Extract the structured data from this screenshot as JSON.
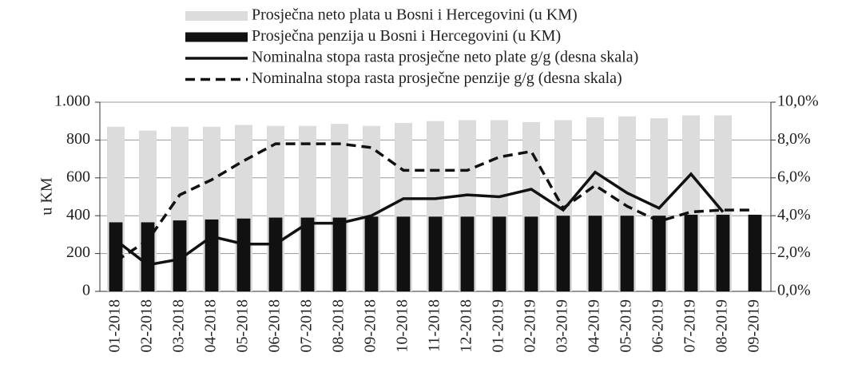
{
  "chart_data": {
    "type": "bar",
    "y_label": "u KM",
    "categories": [
      "01-2018",
      "02-2018",
      "03-2018",
      "04-2018",
      "05-2018",
      "06-2018",
      "07-2018",
      "08-2018",
      "09-2018",
      "10-2018",
      "11-2018",
      "12-2018",
      "01-2019",
      "02-2019",
      "03-2019",
      "04-2019",
      "05-2019",
      "06-2019",
      "07-2019",
      "08-2019",
      "09-2019"
    ],
    "series": [
      {
        "name": "Prosječna neto plata u Bosni i Hercegovini (u KM)",
        "color": "#dcdcdc",
        "style": "bar",
        "axis": "y",
        "values": [
          870,
          850,
          870,
          870,
          880,
          875,
          875,
          885,
          875,
          890,
          900,
          905,
          905,
          895,
          905,
          920,
          925,
          915,
          930,
          930,
          null
        ]
      },
      {
        "name": "Prosječna penzija u Bosni i Hercegovini (u KM)",
        "color": "#111111",
        "style": "bar",
        "axis": "y",
        "values": [
          365,
          365,
          375,
          380,
          385,
          390,
          390,
          390,
          395,
          395,
          395,
          395,
          395,
          395,
          400,
          400,
          400,
          400,
          405,
          405,
          405
        ]
      },
      {
        "name": "Nominalna stopa rasta prosječne neto plate g/g (desna skala)",
        "color": "#111111",
        "style": "line",
        "dash": false,
        "axis": "y2",
        "values": [
          2.7,
          1.4,
          1.7,
          2.9,
          2.5,
          2.5,
          3.6,
          3.6,
          4.0,
          4.9,
          4.9,
          5.1,
          5.0,
          5.4,
          4.3,
          6.3,
          5.2,
          4.4,
          6.2,
          4.2,
          null
        ]
      },
      {
        "name": "Nominalna stopa rasta prosječne penzije g/g (desna skala)",
        "color": "#111111",
        "style": "line",
        "dash": true,
        "axis": "y2",
        "values": [
          1.6,
          2.7,
          5.1,
          5.9,
          6.9,
          7.8,
          7.8,
          7.8,
          7.6,
          6.4,
          6.4,
          6.4,
          7.1,
          7.4,
          4.4,
          5.6,
          4.5,
          3.7,
          4.2,
          4.3,
          4.3
        ]
      }
    ],
    "ylim": [
      0,
      1000
    ],
    "yticks": [
      0,
      200,
      400,
      600,
      800,
      {
        "value": 1000,
        "label": "1.000"
      }
    ],
    "y2lim": [
      0,
      10
    ],
    "y2ticks": [
      {
        "value": 0,
        "label": "0,0%"
      },
      {
        "value": 2,
        "label": "2,0%"
      },
      {
        "value": 4,
        "label": "4,0%"
      },
      {
        "value": 6,
        "label": "6,0%"
      },
      {
        "value": 8,
        "label": "8,0%"
      },
      {
        "value": 10,
        "label": "10,0%"
      }
    ],
    "grid": true
  }
}
